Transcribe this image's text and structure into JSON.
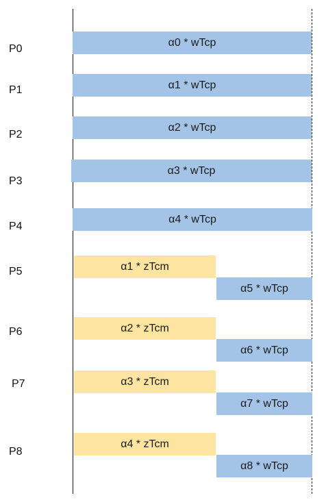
{
  "rows": [
    {
      "label": "P0",
      "bars": [
        {
          "text": "α0 * wTcp",
          "kind": "compute"
        }
      ]
    },
    {
      "label": "P1",
      "bars": [
        {
          "text": "α1 * wTcp",
          "kind": "compute"
        }
      ]
    },
    {
      "label": "P2",
      "bars": [
        {
          "text": "α2 * wTcp",
          "kind": "compute"
        }
      ]
    },
    {
      "label": "P3",
      "bars": [
        {
          "text": "α3 * wTcp",
          "kind": "compute"
        }
      ]
    },
    {
      "label": "P4",
      "bars": [
        {
          "text": "α4 * wTcp",
          "kind": "compute"
        }
      ]
    },
    {
      "label": "P5",
      "bars": [
        {
          "text": "α1 * zTcm",
          "kind": "communication"
        },
        {
          "text": "α5 * wTcp",
          "kind": "compute"
        }
      ]
    },
    {
      "label": "P6",
      "bars": [
        {
          "text": "α2 * zTcm",
          "kind": "communication"
        },
        {
          "text": "α6 * wTcp",
          "kind": "compute"
        }
      ]
    },
    {
      "label": "P7",
      "bars": [
        {
          "text": "α3 * zTcm",
          "kind": "communication"
        },
        {
          "text": "α7 * wTcp",
          "kind": "compute"
        }
      ]
    },
    {
      "label": "P8",
      "bars": [
        {
          "text": "α4 * zTcm",
          "kind": "communication"
        },
        {
          "text": "α8 * wTcp",
          "kind": "compute"
        }
      ]
    }
  ],
  "colors": {
    "compute": "#a3c4e6",
    "communication": "#fde4a0"
  }
}
